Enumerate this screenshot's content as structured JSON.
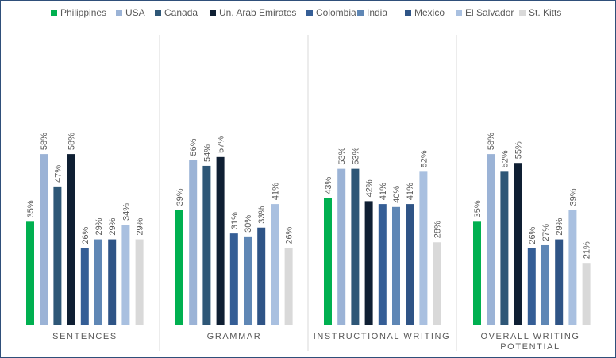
{
  "chart_data": {
    "type": "bar",
    "categories": [
      "SENTENCES",
      "GRAMMAR",
      "INSTRUCTIONAL WRITING",
      "OVERALL WRITING POTENTIAL"
    ],
    "ylim": [
      0,
      100
    ],
    "legend_position": "top",
    "grid": false,
    "series": [
      {
        "name": "Philippines",
        "color": "#00b050",
        "values": [
          35,
          39,
          43,
          35
        ],
        "labels": [
          "35%",
          "39%",
          "43%",
          "35%"
        ]
      },
      {
        "name": "USA",
        "color": "#9bb3d6",
        "values": [
          58,
          56,
          53,
          58
        ],
        "labels": [
          "58%",
          "56%",
          "53%",
          "58%"
        ]
      },
      {
        "name": "Canada",
        "color": "#2e5777",
        "values": [
          47,
          54,
          53,
          52
        ],
        "labels": [
          "47%",
          "54%",
          "53%",
          "52%"
        ]
      },
      {
        "name": "Un. Arab Emirates",
        "color": "#0f1f33",
        "values": [
          58,
          57,
          42,
          55
        ],
        "labels": [
          "58%",
          "57%",
          "42%",
          "55%"
        ]
      },
      {
        "name": "Colombia",
        "color": "#355e96",
        "values": [
          26,
          31,
          41,
          26
        ],
        "labels": [
          "26%",
          "31%",
          "41%",
          "26%"
        ]
      },
      {
        "name": "India",
        "color": "#5f87b5",
        "values": [
          29,
          30,
          40,
          27
        ],
        "labels": [
          "29%",
          "30%",
          "40%",
          "27%"
        ]
      },
      {
        "name": "Mexico",
        "color": "#2f5486",
        "values": [
          29,
          33,
          41,
          29
        ],
        "labels": [
          "29%",
          "33%",
          "41%",
          "29%"
        ]
      },
      {
        "name": "El Salvador",
        "color": "#a9c0e0",
        "values": [
          34,
          41,
          52,
          39
        ],
        "labels": [
          "34%",
          "41%",
          "52%",
          "39%"
        ]
      },
      {
        "name": "St. Kitts",
        "color": "#d9d9d9",
        "values": [
          29,
          26,
          28,
          21
        ],
        "labels": [
          "29%",
          "26%",
          "28%",
          "21%"
        ]
      }
    ]
  }
}
